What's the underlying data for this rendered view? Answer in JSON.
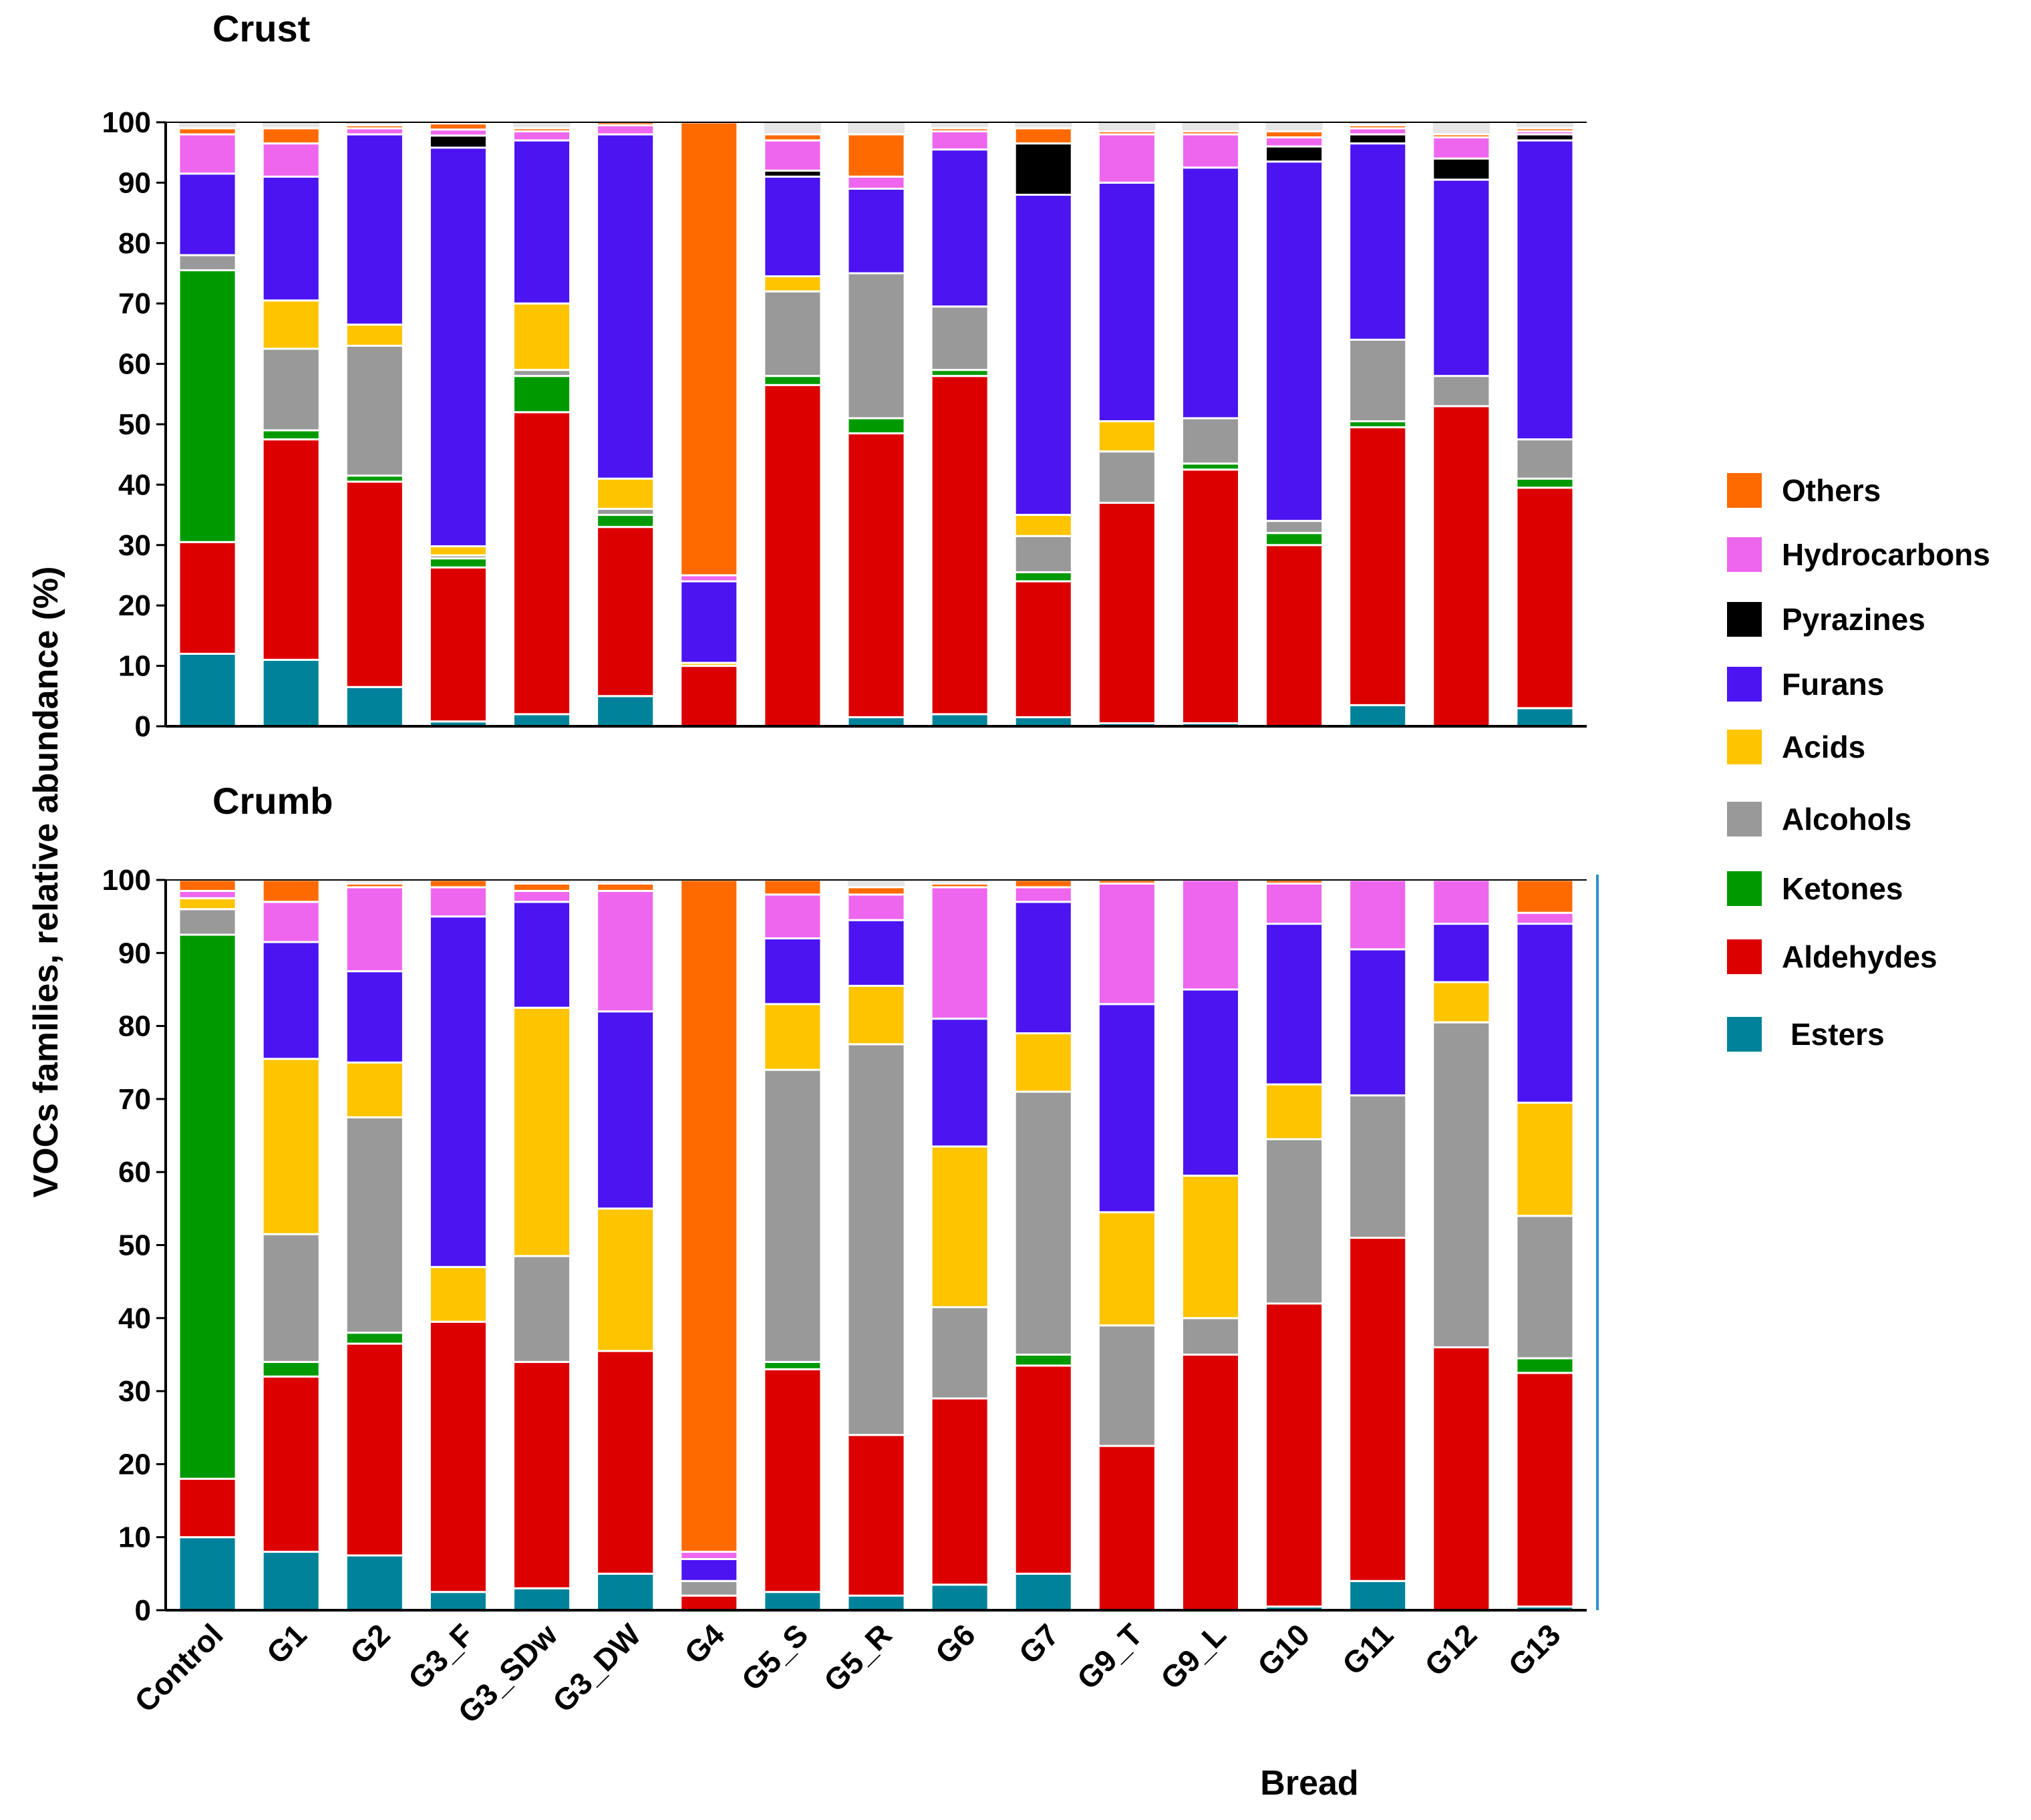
{
  "chart_data": [
    {
      "type": "bar",
      "stacked": true,
      "title": "Crust",
      "ylabel": "VOCs families, relative abundance (%)",
      "xlabel": "",
      "ylim": [
        0,
        100
      ],
      "yticks": [
        0,
        10,
        20,
        30,
        40,
        50,
        60,
        70,
        80,
        90,
        100
      ],
      "categories": [
        "Control",
        "G1",
        "G2",
        "G3_F",
        "G3_SDw",
        "G3_DW",
        "G4",
        "G5_S",
        "G5_R",
        "G6",
        "G7",
        "G9_T",
        "G9_L",
        "G10",
        "G11",
        "G12",
        "G13"
      ],
      "series": [
        {
          "name": "Esters",
          "values": [
            12,
            11,
            6.5,
            0.8,
            2,
            5,
            0,
            0,
            1.5,
            2,
            1.5,
            0.5,
            0.5,
            0,
            3.5,
            0,
            3
          ]
        },
        {
          "name": "Aldehydes",
          "values": [
            18.5,
            36.5,
            34,
            25.5,
            50,
            28,
            10,
            56.5,
            47,
            56,
            22.5,
            36.5,
            42,
            30,
            46,
            53,
            36.5
          ]
        },
        {
          "name": "Ketones",
          "values": [
            45,
            1.5,
            1,
            1.5,
            6,
            2,
            0,
            1.5,
            2.5,
            1,
            1.5,
            0,
            1,
            2,
            1,
            0,
            1.5
          ]
        },
        {
          "name": "Alcohols",
          "values": [
            2.5,
            13.5,
            21.5,
            0.5,
            1,
            1,
            0,
            14,
            24,
            10.5,
            6,
            8.5,
            7.5,
            2,
            13.5,
            5,
            6.5
          ]
        },
        {
          "name": "Acids",
          "values": [
            0,
            8,
            3.5,
            1.5,
            11,
            5,
            0.5,
            2.5,
            0,
            0,
            3.5,
            5,
            0,
            0,
            0,
            0,
            0
          ]
        },
        {
          "name": "Furans",
          "values": [
            13.5,
            20.5,
            31.5,
            66,
            27,
            57,
            13.5,
            16.5,
            14,
            26,
            53,
            39.5,
            41.5,
            59.5,
            32.5,
            32.5,
            49.5
          ]
        },
        {
          "name": "Pyrazines",
          "values": [
            0,
            0,
            0,
            2,
            0,
            0,
            0,
            1,
            0,
            0,
            8.5,
            0,
            0,
            2.5,
            1.5,
            3.5,
            1
          ]
        },
        {
          "name": "Hydrocarbons",
          "values": [
            6.5,
            5.5,
            1,
            1,
            1.5,
            1.5,
            1,
            5,
            2,
            3,
            0,
            8,
            5.5,
            1.5,
            1,
            3.5,
            0.5
          ]
        },
        {
          "name": "Others",
          "values": [
            1,
            2.5,
            0.5,
            1,
            0.5,
            0.5,
            75,
            1,
            7,
            0.5,
            2.5,
            0.5,
            0.5,
            1,
            0.5,
            0.5,
            0.5
          ]
        }
      ]
    },
    {
      "type": "bar",
      "stacked": true,
      "title": "Crumb",
      "ylabel": "VOCs families, relative abundance (%)",
      "xlabel": "Bread",
      "ylim": [
        0,
        100
      ],
      "yticks": [
        0,
        10,
        20,
        30,
        40,
        50,
        60,
        70,
        80,
        90,
        100
      ],
      "categories": [
        "Control",
        "G1",
        "G2",
        "G3_F",
        "G3_SDw",
        "G3_DW",
        "G4",
        "G5_S",
        "G5_R",
        "G6",
        "G7",
        "G9_T",
        "G9_L",
        "G10",
        "G11",
        "G12",
        "G13"
      ],
      "series": [
        {
          "name": "Esters",
          "values": [
            10,
            8,
            7.5,
            2.5,
            3,
            5,
            0,
            2.5,
            2,
            3.5,
            5,
            0,
            0,
            0.5,
            4,
            0,
            0.5
          ]
        },
        {
          "name": "Aldehydes",
          "values": [
            8,
            24,
            29,
            37,
            31,
            30.5,
            2,
            30.5,
            22,
            25.5,
            28.5,
            22.5,
            35,
            41.5,
            47,
            36,
            32
          ]
        },
        {
          "name": "Ketones",
          "values": [
            74.5,
            2,
            1.5,
            0,
            0,
            0,
            0,
            1,
            0,
            0,
            1.5,
            0,
            0,
            0,
            0,
            0,
            2
          ]
        },
        {
          "name": "Alcohols",
          "values": [
            3.5,
            17.5,
            29.5,
            0,
            14.5,
            0,
            2,
            40,
            53.5,
            12.5,
            36,
            16.5,
            5,
            22.5,
            19.5,
            44.5,
            19.5
          ]
        },
        {
          "name": "Acids",
          "values": [
            1.5,
            24,
            7.5,
            7.5,
            34,
            19.5,
            0,
            9,
            8,
            22,
            8,
            15.5,
            19.5,
            7.5,
            0,
            5.5,
            15.5
          ]
        },
        {
          "name": "Furans",
          "values": [
            0,
            16,
            12.5,
            48,
            14.5,
            27,
            3,
            9,
            9,
            17.5,
            18,
            28.5,
            25.5,
            22,
            20,
            8,
            24.5
          ]
        },
        {
          "name": "Pyrazines",
          "values": [
            0,
            0,
            0,
            0,
            0,
            0,
            0,
            0,
            0,
            0,
            0,
            0,
            0,
            0,
            0,
            0,
            0
          ]
        },
        {
          "name": "Hydrocarbons",
          "values": [
            1,
            5.5,
            11.5,
            4,
            1.5,
            16.5,
            1,
            6,
            3.5,
            18,
            2,
            16.5,
            15,
            5.5,
            9.5,
            6,
            1.5
          ]
        },
        {
          "name": "Others",
          "values": [
            1.5,
            3,
            0.5,
            1,
            1,
            1,
            92,
            2,
            1,
            0.5,
            1,
            0.5,
            0,
            0.5,
            0,
            0,
            4.5
          ]
        }
      ]
    }
  ],
  "legend": [
    {
      "name": "Others",
      "color": "#FF6A00"
    },
    {
      "name": "Hydrocarbons",
      "color": "#EE66EE"
    },
    {
      "name": "Pyrazines",
      "color": "#000000"
    },
    {
      "name": "Furans",
      "color": "#4B14F0"
    },
    {
      "name": "Acids",
      "color": "#FFC400"
    },
    {
      "name": "Alcohols",
      "color": "#999999"
    },
    {
      "name": "Ketones",
      "color": "#009A00"
    },
    {
      "name": "Aldehydes",
      "color": "#DD0000"
    },
    {
      "name": "Esters",
      "color": "#00839A"
    }
  ],
  "colors": {
    "Esters": "#00839A",
    "Aldehydes": "#DD0000",
    "Ketones": "#009A00",
    "Alcohols": "#999999",
    "Acids": "#FFC400",
    "Furans": "#4B14F0",
    "Pyrazines": "#000000",
    "Hydrocarbons": "#EE66EE",
    "Others": "#FF6A00",
    "column_bg": "#E6E6E6",
    "right_axis": "#2F8FD0"
  }
}
